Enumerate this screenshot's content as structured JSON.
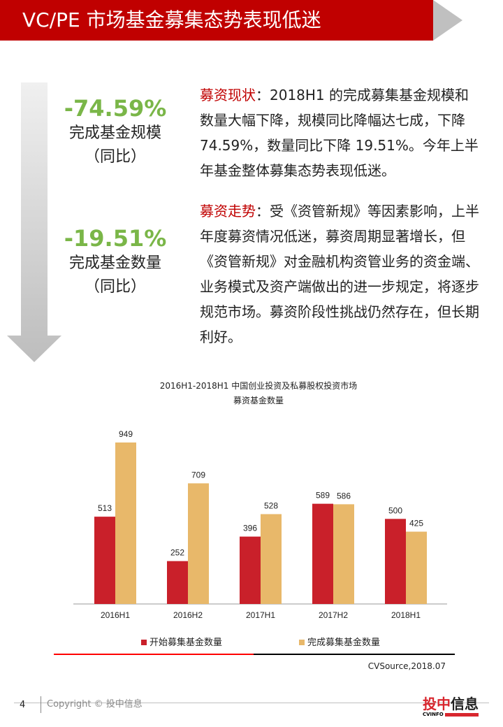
{
  "header": {
    "title": "VC/PE 市场基金募集态势表现低迷"
  },
  "stats": [
    {
      "value": "-74.59%",
      "label1": "完成基金规模",
      "label2": "（同比）"
    },
    {
      "value": "-19.51%",
      "label1": "完成基金数量",
      "label2": "（同比）"
    }
  ],
  "paragraphs": [
    {
      "highlight": "募资现状",
      "text": "：2018H1 的完成募集基金规模和数量大幅下降，规模同比降幅达七成，下降 74.59%，数量同比下降 19.51%。今年上半年基金整体募集态势表现低迷。"
    },
    {
      "highlight": "募资走势",
      "text": "：受《资管新规》等因素影响，上半年度募资情况低迷，募资周期显著增长，但《资管新规》对金融机构资管业务的资金端、业务模式及资产端做出的进一步规定，将逐步规范市场。募资阶段性挑战仍然存在，但长期利好。"
    }
  ],
  "chart_data": {
    "type": "bar",
    "title": "2016H1-2018H1 中国创业投资及私募股权投资市场",
    "subtitle": "募资基金数量",
    "categories": [
      "2016H1",
      "2016H2",
      "2017H1",
      "2017H2",
      "2018H1"
    ],
    "series": [
      {
        "name": "开始募集基金数量",
        "values": [
          513,
          252,
          396,
          589,
          500
        ],
        "color": "#c9202a"
      },
      {
        "name": "完成募集基金数量",
        "values": [
          949,
          709,
          528,
          586,
          425
        ],
        "color": "#e8b86a"
      }
    ],
    "ylim": [
      0,
      1000
    ],
    "grid": false,
    "legend": "bottom"
  },
  "source": "CVSource,2018.07",
  "footer": {
    "page": "4",
    "copyright": "Copyright © 投中信息",
    "logo": "投中信息 CVINFO"
  },
  "colors": {
    "accent": "#c00000",
    "green": "#7ab648"
  }
}
